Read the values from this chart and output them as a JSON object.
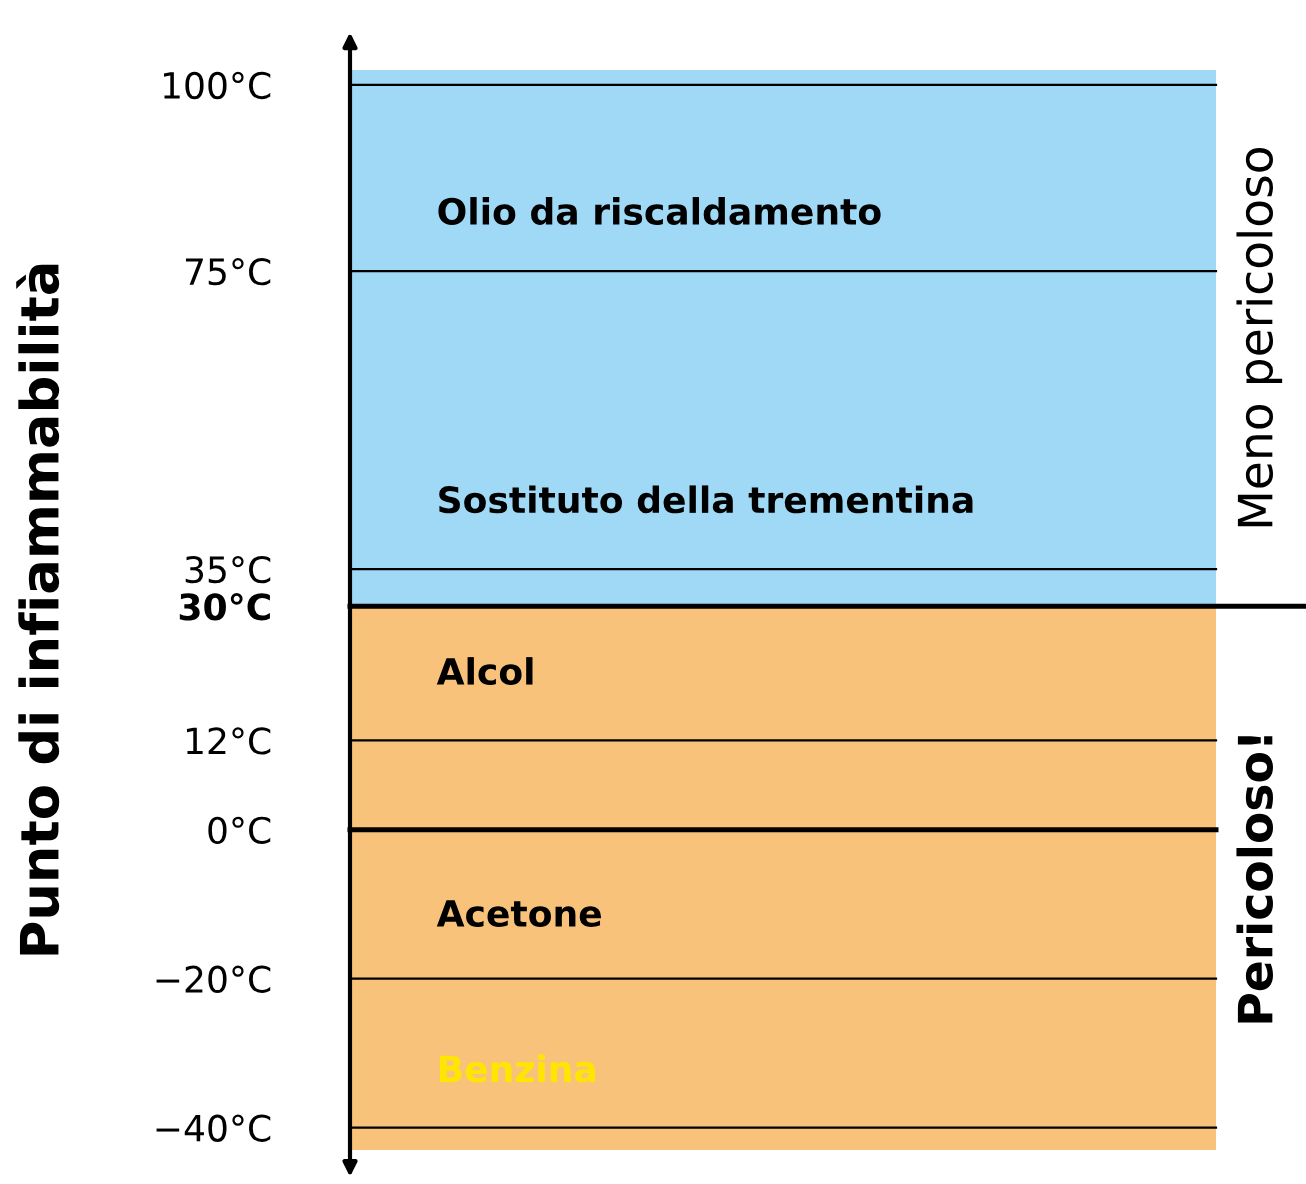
{
  "chart_data": {
    "type": "bar",
    "ylabel": "Punto di infiammabilità",
    "categories": [
      null
    ],
    "series": [
      {
        "name": "Pericoloso!",
        "color": "#f9c27a",
        "base": [
          -43
        ],
        "values": [
          73
        ]
      },
      {
        "name": "Meno pericoloso",
        "color": "#9fd9f5",
        "base": [
          30
        ],
        "values": [
          72
        ]
      }
    ],
    "ylim": [
      -43,
      102
    ],
    "yticks": [
      {
        "value": 100,
        "label": "100°C"
      },
      {
        "value": 75,
        "label": "75°C"
      },
      {
        "value": 35,
        "label": "35°C"
      },
      {
        "value": 30,
        "label": "30°C"
      },
      {
        "value": 12,
        "label": "12°C"
      },
      {
        "value": 0,
        "label": "0°C"
      },
      {
        "value": -20,
        "label": "−20°C"
      },
      {
        "value": -40,
        "label": "−40°C"
      }
    ],
    "ref_lines": [
      {
        "axis": "y",
        "value": 30,
        "label": null
      },
      {
        "axis": "y",
        "value": 0,
        "label": null
      },
      {
        "axis": "y",
        "value": 100,
        "label": null
      },
      {
        "axis": "y",
        "value": 75,
        "label": null
      },
      {
        "axis": "y",
        "value": 35,
        "label": null
      },
      {
        "axis": "y",
        "value": 12,
        "label": null
      },
      {
        "axis": "y",
        "value": -20,
        "label": null
      },
      {
        "axis": "y",
        "value": -40,
        "label": null
      }
    ],
    "annotations": [
      "Olio da riscaldamento",
      "Sostituto della trementina",
      "Alcol",
      "Acetone",
      "Benzina"
    ]
  }
}
